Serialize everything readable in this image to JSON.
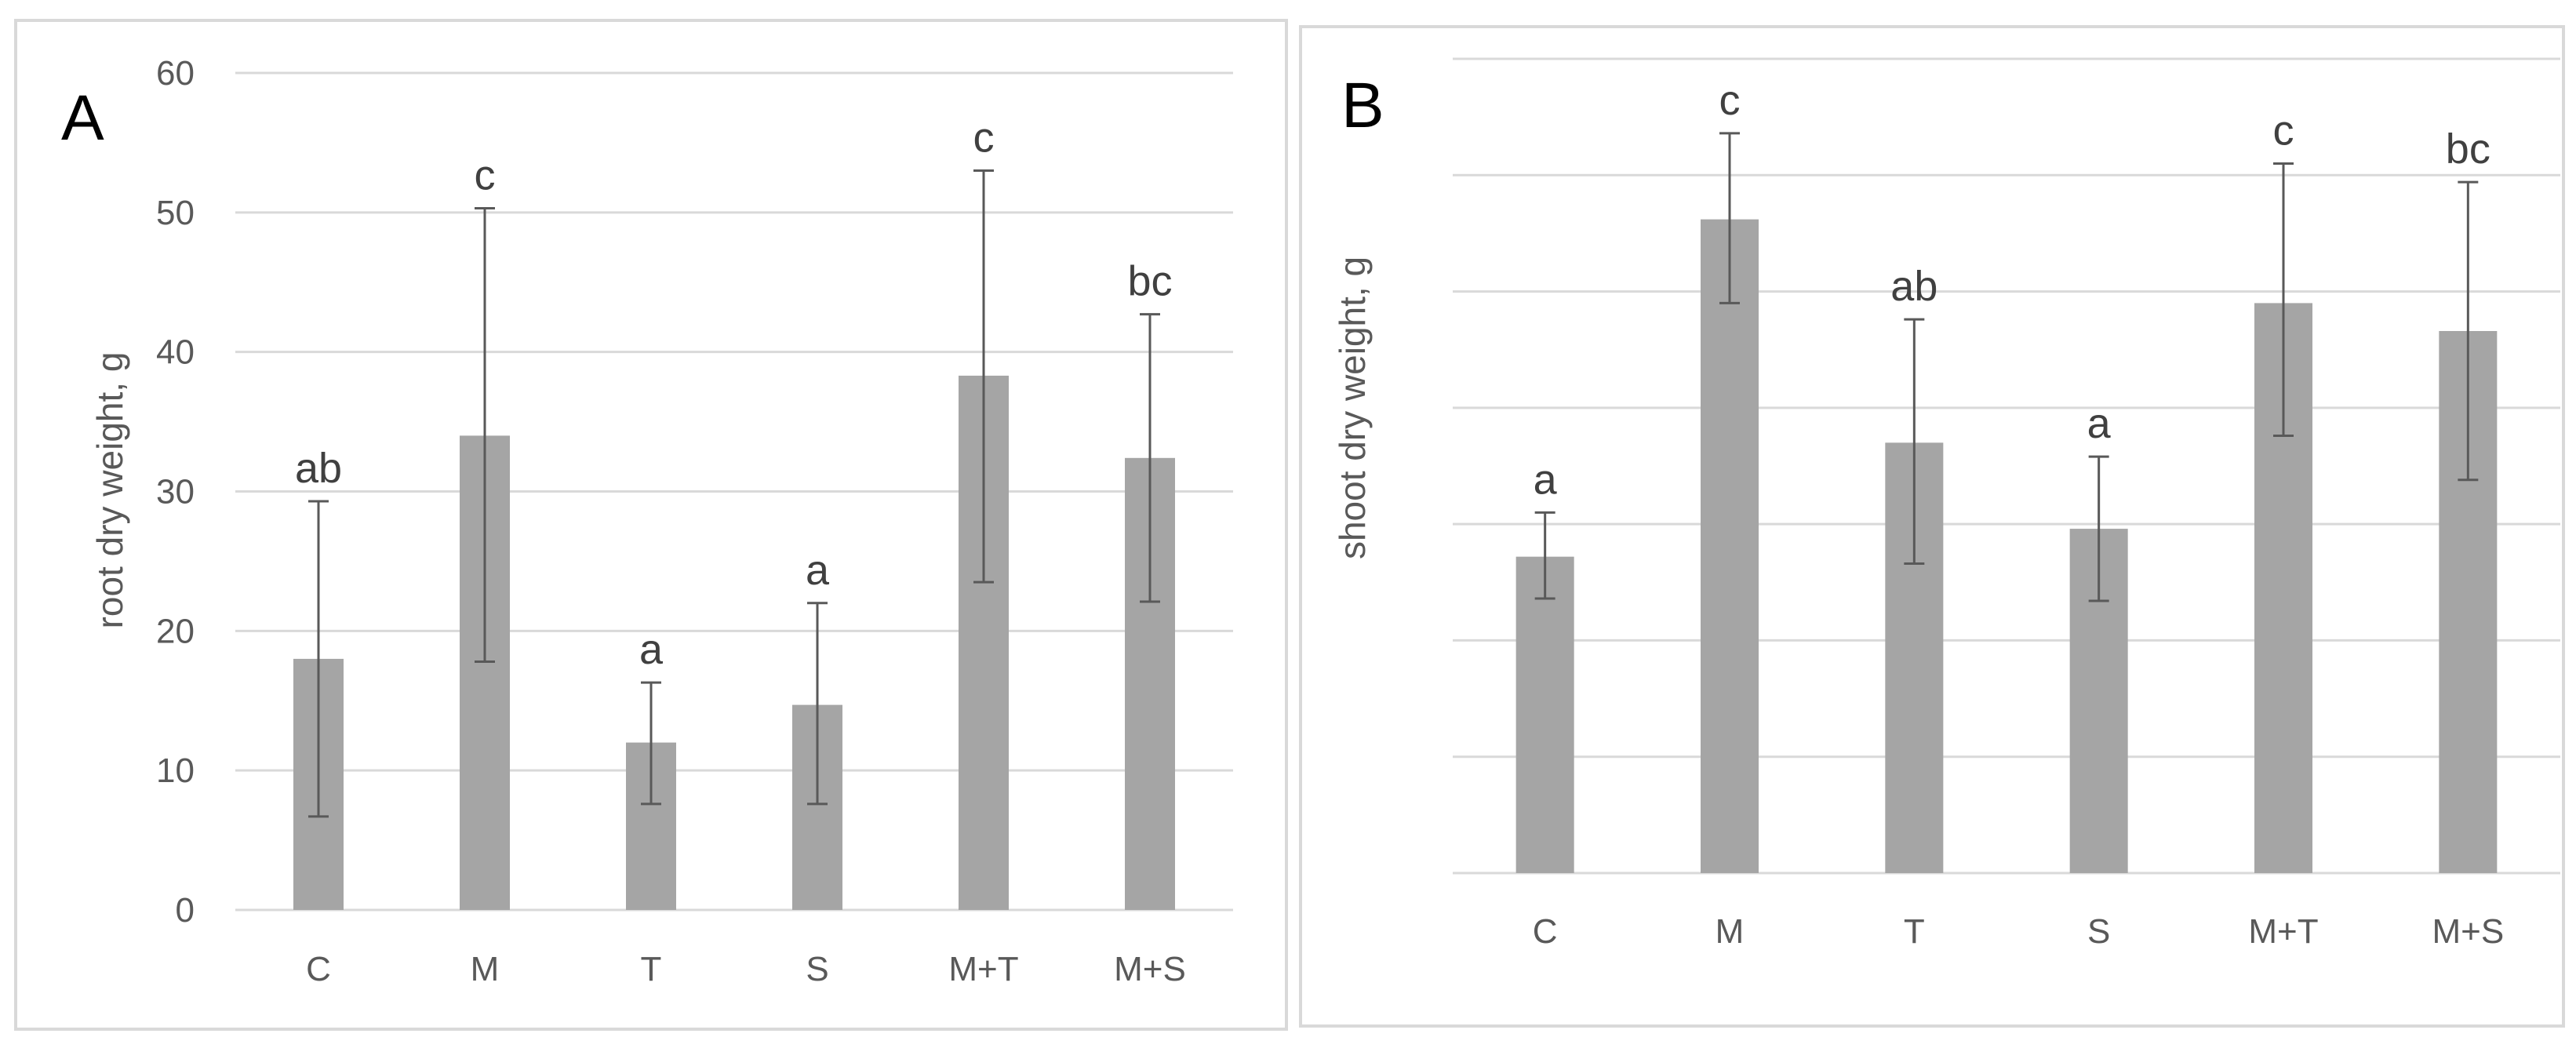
{
  "chart_data": [
    {
      "type": "bar",
      "panel_label": "A",
      "title": "",
      "xlabel": "",
      "ylabel": "root dry weight, g",
      "ylim": [
        0,
        60
      ],
      "yticks": [
        0,
        10,
        20,
        30,
        40,
        50,
        60
      ],
      "show_ytick_labels": true,
      "grid": true,
      "categories": [
        "C",
        "M",
        "T",
        "S",
        "M+T",
        "M+S"
      ],
      "values": [
        18.0,
        34.0,
        12.0,
        14.7,
        38.3,
        32.4
      ],
      "error_low": [
        6.7,
        17.8,
        7.6,
        7.6,
        23.5,
        22.1
      ],
      "error_high": [
        29.3,
        50.3,
        16.3,
        22.0,
        53.0,
        42.7
      ],
      "significance": [
        "ab",
        "c",
        "a",
        "a",
        "c",
        "bc"
      ]
    },
    {
      "type": "bar",
      "panel_label": "B",
      "title": "",
      "xlabel": "",
      "ylabel": "shoot dry weight, g",
      "ylim": [
        0,
        7
      ],
      "yticks": [
        0,
        1,
        2,
        3,
        4,
        5,
        6,
        7
      ],
      "show_ytick_labels": false,
      "grid": true,
      "categories": [
        "C",
        "M",
        "T",
        "S",
        "M+T",
        "M+S"
      ],
      "values": [
        2.72,
        5.62,
        3.7,
        2.96,
        4.9,
        4.66
      ],
      "error_low": [
        2.36,
        4.9,
        2.66,
        2.34,
        3.76,
        3.38
      ],
      "error_high": [
        3.1,
        6.36,
        4.76,
        3.58,
        6.1,
        5.94
      ],
      "significance": [
        "a",
        "c",
        "ab",
        "a",
        "c",
        "bc"
      ]
    }
  ]
}
